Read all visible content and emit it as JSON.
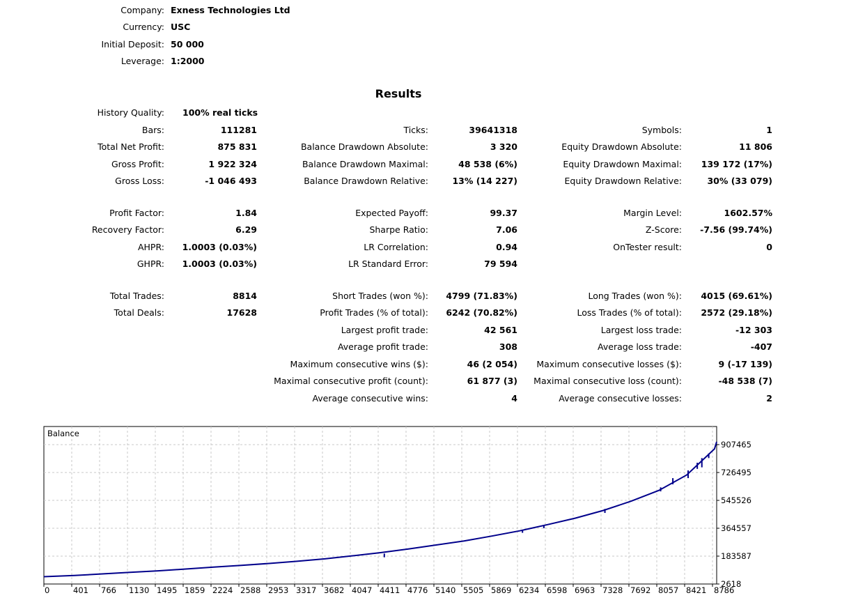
{
  "header": [
    {
      "label": "Company:",
      "value": "Exness Technologies Ltd"
    },
    {
      "label": "Currency:",
      "value": "USC"
    },
    {
      "label": "Initial Deposit:",
      "value": "50 000"
    },
    {
      "label": "Leverage:",
      "value": "1:2000"
    }
  ],
  "results_title": "Results",
  "history_quality": {
    "label": "History Quality:",
    "value": "100% real ticks"
  },
  "col1": [
    {
      "label": "Bars:",
      "value": "111281"
    },
    {
      "label": "Total Net Profit:",
      "value": "875 831"
    },
    {
      "label": "Gross Profit:",
      "value": "1 922 324"
    },
    {
      "label": "Gross Loss:",
      "value": "-1 046 493"
    },
    {
      "label": "Profit Factor:",
      "value": "1.84"
    },
    {
      "label": "Recovery Factor:",
      "value": "6.29"
    },
    {
      "label": "AHPR:",
      "value": "1.0003 (0.03%)"
    },
    {
      "label": "GHPR:",
      "value": "1.0003 (0.03%)"
    },
    {
      "label": "Total Trades:",
      "value": "8814"
    },
    {
      "label": "Total Deals:",
      "value": "17628"
    }
  ],
  "col2": [
    {
      "label": "Ticks:",
      "value": "39641318"
    },
    {
      "label": "Balance Drawdown Absolute:",
      "value": "3 320"
    },
    {
      "label": "Balance Drawdown Maximal:",
      "value": "48 538 (6%)"
    },
    {
      "label": "Balance Drawdown Relative:",
      "value": "13% (14 227)"
    },
    {
      "label": "Expected Payoff:",
      "value": "99.37"
    },
    {
      "label": "Sharpe Ratio:",
      "value": "7.06"
    },
    {
      "label": "LR Correlation:",
      "value": "0.94"
    },
    {
      "label": "LR Standard Error:",
      "value": "79 594"
    },
    {
      "label": "Short Trades (won %):",
      "value": "4799 (71.83%)"
    },
    {
      "label": "Profit Trades (% of total):",
      "value": "6242 (70.82%)"
    },
    {
      "label": "Largest profit trade:",
      "value": "42 561"
    },
    {
      "label": "Average profit trade:",
      "value": "308"
    },
    {
      "label": "Maximum consecutive wins ($):",
      "value": "46 (2 054)"
    },
    {
      "label": "Maximal consecutive profit (count):",
      "value": "61 877 (3)"
    },
    {
      "label": "Average consecutive wins:",
      "value": "4"
    }
  ],
  "col3": [
    {
      "label": "Symbols:",
      "value": "1"
    },
    {
      "label": "Equity Drawdown Absolute:",
      "value": "11 806"
    },
    {
      "label": "Equity Drawdown Maximal:",
      "value": "139 172 (17%)"
    },
    {
      "label": "Equity Drawdown Relative:",
      "value": "30% (33 079)"
    },
    {
      "label": "Margin Level:",
      "value": "1602.57%"
    },
    {
      "label": "Z-Score:",
      "value": "-7.56 (99.74%)"
    },
    {
      "label": "OnTester result:",
      "value": "0"
    },
    {
      "label": "Long Trades (won %):",
      "value": "4015 (69.61%)"
    },
    {
      "label": "Loss Trades (% of total):",
      "value": "2572 (29.18%)"
    },
    {
      "label": "Largest loss trade:",
      "value": "-12 303"
    },
    {
      "label": "Average loss trade:",
      "value": "-407"
    },
    {
      "label": "Maximum consecutive losses ($):",
      "value": "9 (-17 139)"
    },
    {
      "label": "Maximal consecutive loss (count):",
      "value": "-48 538 (7)"
    },
    {
      "label": "Average consecutive losses:",
      "value": "2"
    }
  ],
  "chart_data": {
    "type": "line",
    "title": "Balance",
    "line_color": "#00008b",
    "grid": true,
    "x_ticks": [
      "0",
      "401",
      "766",
      "1130",
      "1495",
      "1859",
      "2224",
      "2588",
      "2953",
      "3317",
      "3682",
      "4047",
      "4411",
      "4776",
      "5140",
      "5505",
      "5869",
      "6234",
      "6598",
      "6963",
      "7328",
      "7692",
      "8057",
      "8421",
      "8786"
    ],
    "y_ticks": [
      "907465",
      "726495",
      "545526",
      "364557",
      "183587",
      "2618"
    ],
    "xlim": [
      0,
      8814
    ],
    "ylim": [
      2618,
      907465
    ],
    "series": [
      {
        "x": [
          0,
          401,
          766,
          1130,
          1495,
          1859,
          2224,
          2588,
          2953,
          3317,
          3682,
          4047,
          4411,
          4776,
          5140,
          5505,
          5869,
          6234,
          6598,
          6963,
          7328,
          7692,
          8057,
          8421,
          8786,
          8814
        ],
        "y": [
          50000,
          58000,
          68000,
          78000,
          88000,
          100000,
          112000,
          124000,
          136000,
          150000,
          166000,
          186000,
          206000,
          230000,
          256000,
          282000,
          314000,
          348000,
          388000,
          430000,
          480000,
          540000,
          610000,
          710000,
          880000,
          925831
        ]
      }
    ],
    "dips": [
      {
        "x": 4460,
        "y": 200000,
        "depth": 24000
      },
      {
        "x": 6270,
        "y": 355000,
        "depth": 20000
      },
      {
        "x": 6550,
        "y": 385000,
        "depth": 20000
      },
      {
        "x": 7350,
        "y": 490000,
        "depth": 26000
      },
      {
        "x": 8080,
        "y": 630000,
        "depth": 26000
      },
      {
        "x": 8240,
        "y": 690000,
        "depth": 40000
      },
      {
        "x": 8440,
        "y": 740000,
        "depth": 50000
      },
      {
        "x": 8560,
        "y": 790000,
        "depth": 40000
      },
      {
        "x": 8620,
        "y": 820000,
        "depth": 60000
      },
      {
        "x": 8710,
        "y": 850000,
        "depth": 30000
      }
    ]
  }
}
